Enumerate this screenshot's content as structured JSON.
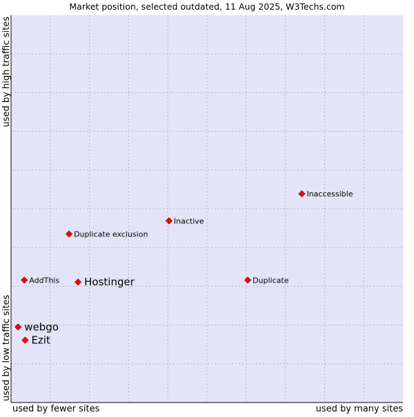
{
  "chart_data": {
    "type": "scatter",
    "title": "Market position, selected outdated, 11 Aug 2025, W3Techs.com",
    "xlabel_left": "used by fewer sites",
    "xlabel_right": "used by many sites",
    "ylabel_top": "used by high traffic sites",
    "ylabel_bottom": "used by low traffic sites",
    "xlim": [
      0,
      100
    ],
    "ylim": [
      0,
      100
    ],
    "grid": true,
    "points": [
      {
        "label": "Inaccessible",
        "x": 74.2,
        "y": 53.9,
        "emphasis": false
      },
      {
        "label": "Inactive",
        "x": 40.3,
        "y": 46.9,
        "emphasis": false
      },
      {
        "label": "Duplicate exclusion",
        "x": 14.8,
        "y": 43.5,
        "emphasis": false
      },
      {
        "label": "AddThis",
        "x": 3.4,
        "y": 31.6,
        "emphasis": false
      },
      {
        "label": "Hostinger",
        "x": 17.1,
        "y": 31.1,
        "emphasis": true
      },
      {
        "label": "Duplicate",
        "x": 60.4,
        "y": 31.6,
        "emphasis": false
      },
      {
        "label": "webgo",
        "x": 1.8,
        "y": 19.5,
        "emphasis": true
      },
      {
        "label": "Ezit",
        "x": 3.6,
        "y": 16.1,
        "emphasis": true
      }
    ]
  },
  "colors": {
    "plot_background": "#e4e4f8",
    "grid": "#b3b3c9",
    "marker_fill": "#ff0000",
    "marker_stroke": "#990000",
    "frame": "#000000",
    "text": "#000000"
  }
}
